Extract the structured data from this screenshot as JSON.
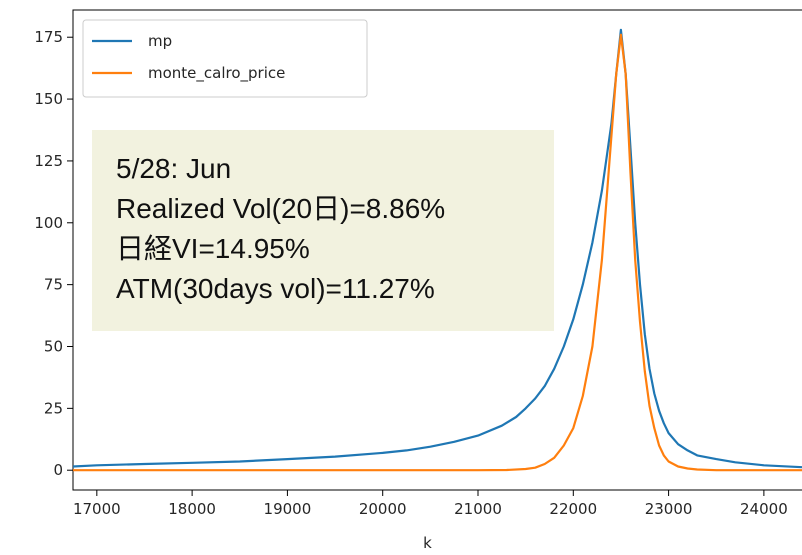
{
  "chart_data": {
    "type": "line",
    "xlabel": "k",
    "ylabel": "",
    "xlim": [
      16750,
      24400
    ],
    "ylim": [
      -8,
      186
    ],
    "xticks": [
      17000,
      18000,
      19000,
      20000,
      21000,
      22000,
      23000,
      24000
    ],
    "yticks": [
      0,
      25,
      50,
      75,
      100,
      125,
      150,
      175
    ],
    "grid": false,
    "legend_position": "top-left",
    "series": [
      {
        "name": "mp",
        "color": "#1f77b4",
        "x": [
          16750,
          17000,
          17500,
          18000,
          18500,
          19000,
          19500,
          20000,
          20250,
          20500,
          20750,
          21000,
          21250,
          21400,
          21500,
          21600,
          21700,
          21800,
          21900,
          22000,
          22100,
          22200,
          22300,
          22400,
          22450,
          22500,
          22550,
          22600,
          22650,
          22700,
          22750,
          22800,
          22850,
          22900,
          22950,
          23000,
          23100,
          23200,
          23300,
          23500,
          23700,
          24000,
          24400
        ],
        "y": [
          1.5,
          2,
          2.5,
          3,
          3.5,
          4.5,
          5.5,
          7,
          8,
          9.5,
          11.5,
          14,
          18,
          21.5,
          25,
          29,
          34,
          41,
          50,
          61,
          75,
          92,
          113,
          140,
          160,
          178,
          160,
          130,
          100,
          75,
          55,
          41,
          31,
          24,
          19,
          15,
          10.5,
          8,
          6,
          4.5,
          3.2,
          2,
          1.2
        ]
      },
      {
        "name": "monte_calro_price",
        "color": "#ff7f0e",
        "x": [
          16750,
          17000,
          18000,
          19000,
          20000,
          20500,
          21000,
          21300,
          21500,
          21600,
          21700,
          21800,
          21900,
          22000,
          22100,
          22200,
          22300,
          22400,
          22450,
          22500,
          22550,
          22600,
          22650,
          22700,
          22750,
          22800,
          22850,
          22900,
          22950,
          23000,
          23100,
          23200,
          23300,
          23500,
          24000,
          24400
        ],
        "y": [
          0,
          0,
          0,
          0,
          0,
          0,
          0,
          0.1,
          0.5,
          1,
          2.5,
          5,
          10,
          17,
          30,
          50,
          85,
          135,
          160,
          176,
          160,
          120,
          85,
          60,
          40,
          26,
          17,
          10,
          6,
          3.5,
          1.5,
          0.7,
          0.3,
          0,
          0,
          0
        ]
      }
    ],
    "annotation": {
      "lines": [
        "5/28: Jun",
        "Realized Vol(20日)=8.86%",
        "日経VI=14.95%",
        "ATM(30days vol)=11.27%"
      ],
      "background": "#f2f2df"
    }
  }
}
